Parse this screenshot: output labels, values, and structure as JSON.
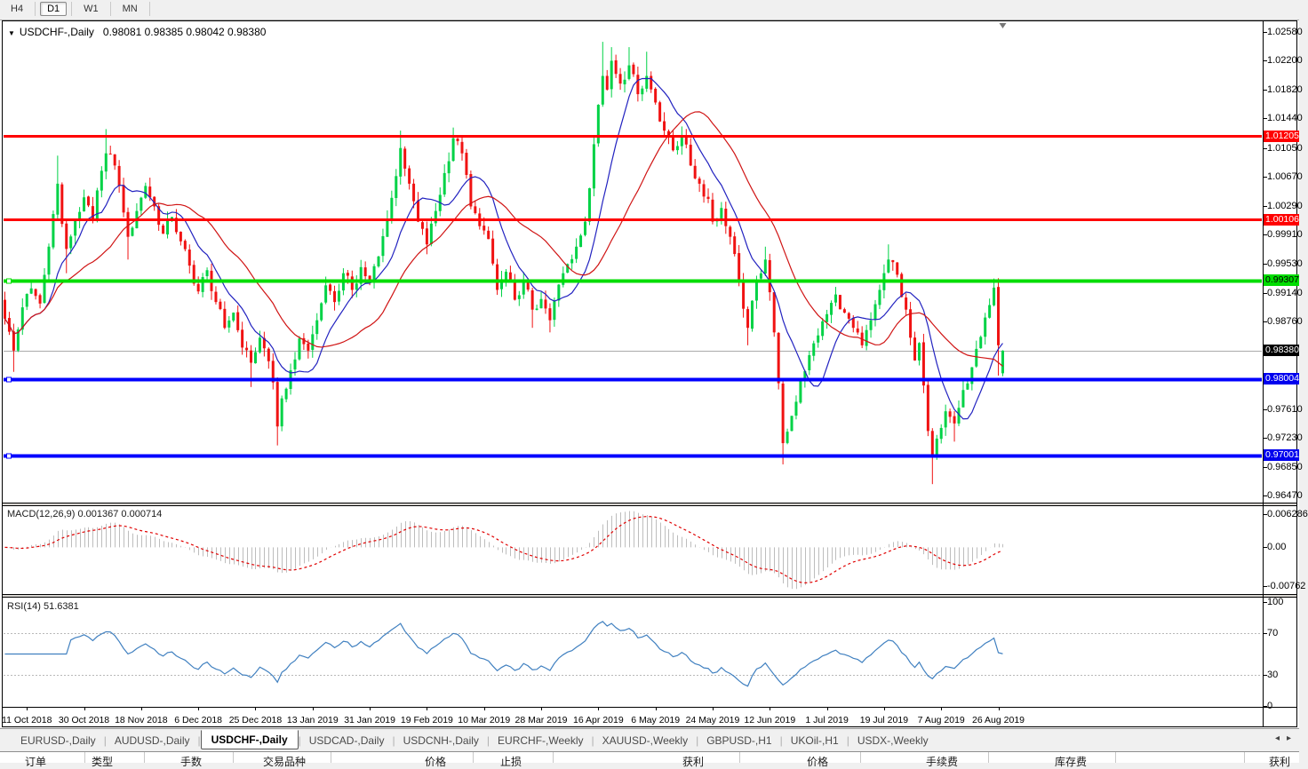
{
  "toolbar": {
    "timeframes": [
      "H4",
      "D1",
      "W1",
      "MN"
    ],
    "active": "D1"
  },
  "chart": {
    "title_symbol": "USDCHF-,Daily",
    "ohlc": "0.98081 0.98385 0.98042 0.98380"
  },
  "chart_data": {
    "type": "candlestick",
    "symbol": "USDCHF",
    "timeframe": "Daily",
    "last_ohlc": {
      "open": 0.98081,
      "high": 0.98385,
      "low": 0.98042,
      "close": 0.9838
    },
    "y_axis": {
      "min": 0.9647,
      "max": 1.0258,
      "tick_labels": [
        "1.02580",
        "1.02200",
        "1.01820",
        "1.01440",
        "1.01050",
        "1.00670",
        "1.00290",
        "0.99910",
        "0.99530",
        "0.99140",
        "0.98760",
        "0.97610",
        "0.97230",
        "0.96850",
        "0.96470"
      ],
      "tick_values": [
        1.0258,
        1.022,
        1.0182,
        1.0144,
        1.0105,
        1.0067,
        1.0029,
        0.9991,
        0.9953,
        0.9914,
        0.9876,
        0.9761,
        0.9723,
        0.9685,
        0.9647
      ]
    },
    "x_ticks": {
      "indices": [
        5,
        18,
        31,
        44,
        57,
        70,
        83,
        96,
        109,
        122,
        135,
        148,
        161,
        174,
        187,
        200,
        213,
        226
      ],
      "labels": [
        "11 Oct 2018",
        "30 Oct 2018",
        "18 Nov 2018",
        "6 Dec 2018",
        "25 Dec 2018",
        "13 Jan 2019",
        "31 Jan 2019",
        "19 Feb 2019",
        "10 Mar 2019",
        "28 Mar 2019",
        "16 Apr 2019",
        "6 May 2019",
        "24 May 2019",
        "12 Jun 2019",
        "1 Jul 2019",
        "19 Jul 2019",
        "7 Aug 2019",
        "26 Aug 2019"
      ]
    },
    "candle_count": 228,
    "first_open": 0.9905,
    "last_open": 0.98081,
    "price_path_anchors": [
      [
        0,
        0.988,
        null,
        null
      ],
      [
        2,
        0.9838,
        null,
        0.981
      ],
      [
        4,
        0.9895,
        null,
        null
      ],
      [
        6,
        0.992,
        null,
        null
      ],
      [
        8,
        0.99,
        null,
        null
      ],
      [
        10,
        0.9975,
        null,
        null
      ],
      [
        12,
        1.0058,
        1.0095,
        null
      ],
      [
        13,
        1.0005,
        null,
        null
      ],
      [
        14,
        0.9972,
        null,
        0.994
      ],
      [
        16,
        1.001,
        null,
        null
      ],
      [
        18,
        1.004,
        null,
        null
      ],
      [
        20,
        1.0012,
        null,
        null
      ],
      [
        22,
        1.0075,
        null,
        null
      ],
      [
        23,
        1.0098,
        1.013,
        null
      ],
      [
        25,
        1.0082,
        null,
        null
      ],
      [
        27,
        1.002,
        null,
        null
      ],
      [
        28,
        0.9988,
        null,
        0.9958
      ],
      [
        30,
        1.0022,
        null,
        null
      ],
      [
        32,
        1.0055,
        null,
        null
      ],
      [
        34,
        1.0028,
        null,
        null
      ],
      [
        36,
        0.9992,
        null,
        null
      ],
      [
        38,
        1.0014,
        null,
        null
      ],
      [
        40,
        0.9982,
        null,
        null
      ],
      [
        42,
        0.995,
        null,
        null
      ],
      [
        44,
        0.9916,
        null,
        null
      ],
      [
        46,
        0.9944,
        null,
        null
      ],
      [
        48,
        0.9902,
        null,
        null
      ],
      [
        50,
        0.9868,
        null,
        null
      ],
      [
        52,
        0.9888,
        null,
        null
      ],
      [
        54,
        0.9842,
        null,
        null
      ],
      [
        56,
        0.9822,
        null,
        0.979
      ],
      [
        58,
        0.9855,
        null,
        null
      ],
      [
        60,
        0.9824,
        null,
        null
      ],
      [
        61,
        0.9796,
        null,
        null
      ],
      [
        62,
        0.9738,
        null,
        0.9713
      ],
      [
        63,
        0.9775,
        null,
        null
      ],
      [
        65,
        0.9812,
        null,
        null
      ],
      [
        67,
        0.9854,
        null,
        null
      ],
      [
        69,
        0.9838,
        null,
        null
      ],
      [
        71,
        0.9878,
        null,
        null
      ],
      [
        73,
        0.9924,
        null,
        null
      ],
      [
        75,
        0.9902,
        null,
        null
      ],
      [
        77,
        0.994,
        null,
        null
      ],
      [
        79,
        0.9918,
        null,
        null
      ],
      [
        81,
        0.9948,
        null,
        null
      ],
      [
        83,
        0.9928,
        null,
        null
      ],
      [
        85,
        0.9962,
        null,
        null
      ],
      [
        87,
        1.0012,
        null,
        null
      ],
      [
        89,
        1.0068,
        null,
        null
      ],
      [
        90,
        1.0105,
        1.0128,
        null
      ],
      [
        92,
        1.0058,
        null,
        null
      ],
      [
        94,
        1.0008,
        null,
        null
      ],
      [
        96,
        0.9978,
        null,
        0.9965
      ],
      [
        98,
        1.0022,
        null,
        null
      ],
      [
        100,
        1.0072,
        null,
        null
      ],
      [
        102,
        1.0118,
        1.0132,
        null
      ],
      [
        104,
        1.0098,
        null,
        null
      ],
      [
        106,
        1.0028,
        null,
        null
      ],
      [
        108,
        1.0002,
        null,
        null
      ],
      [
        110,
        0.9985,
        null,
        null
      ],
      [
        112,
        0.9918,
        null,
        null
      ],
      [
        114,
        0.9942,
        null,
        null
      ],
      [
        116,
        0.9905,
        null,
        null
      ],
      [
        118,
        0.9932,
        null,
        null
      ],
      [
        120,
        0.9892,
        null,
        0.9868
      ],
      [
        122,
        0.9906,
        null,
        null
      ],
      [
        124,
        0.9878,
        null,
        0.9862
      ],
      [
        126,
        0.9925,
        null,
        null
      ],
      [
        128,
        0.9952,
        null,
        null
      ],
      [
        130,
        0.9975,
        null,
        null
      ],
      [
        132,
        1.0008,
        null,
        null
      ],
      [
        133,
        1.0052,
        null,
        null
      ],
      [
        134,
        1.011,
        null,
        null
      ],
      [
        135,
        1.0162,
        null,
        null
      ],
      [
        136,
        1.02,
        1.0245,
        null
      ],
      [
        137,
        1.0182,
        null,
        null
      ],
      [
        138,
        1.022,
        1.0238,
        null
      ],
      [
        140,
        1.019,
        null,
        null
      ],
      [
        142,
        1.0214,
        1.0238,
        null
      ],
      [
        144,
        1.0176,
        null,
        null
      ],
      [
        146,
        1.02,
        1.0232,
        null
      ],
      [
        148,
        1.0165,
        null,
        null
      ],
      [
        150,
        1.0128,
        null,
        null
      ],
      [
        152,
        1.0102,
        null,
        null
      ],
      [
        154,
        1.0122,
        null,
        null
      ],
      [
        156,
        1.0082,
        null,
        null
      ],
      [
        158,
        1.0058,
        null,
        null
      ],
      [
        160,
        1.0038,
        null,
        null
      ],
      [
        161,
        1.0008,
        null,
        null
      ],
      [
        163,
        1.0026,
        null,
        null
      ],
      [
        165,
        0.9988,
        null,
        null
      ],
      [
        167,
        0.993,
        null,
        null
      ],
      [
        169,
        0.9868,
        null,
        0.9845
      ],
      [
        171,
        0.9932,
        null,
        null
      ],
      [
        173,
        0.9958,
        0.9975,
        null
      ],
      [
        175,
        0.9862,
        null,
        null
      ],
      [
        176,
        0.9795,
        null,
        null
      ],
      [
        177,
        0.9716,
        null,
        0.9688
      ],
      [
        179,
        0.9752,
        null,
        null
      ],
      [
        181,
        0.9798,
        null,
        null
      ],
      [
        183,
        0.9832,
        null,
        null
      ],
      [
        185,
        0.9858,
        null,
        null
      ],
      [
        187,
        0.9886,
        null,
        null
      ],
      [
        189,
        0.9912,
        0.9922,
        null
      ],
      [
        191,
        0.9888,
        null,
        null
      ],
      [
        193,
        0.9868,
        null,
        null
      ],
      [
        195,
        0.9845,
        null,
        null
      ],
      [
        197,
        0.9878,
        null,
        null
      ],
      [
        199,
        0.9918,
        null,
        null
      ],
      [
        201,
        0.9958,
        0.9978,
        null
      ],
      [
        203,
        0.9938,
        null,
        null
      ],
      [
        205,
        0.9892,
        null,
        null
      ],
      [
        206,
        0.9855,
        null,
        null
      ],
      [
        207,
        0.9825,
        null,
        null
      ],
      [
        208,
        0.9848,
        null,
        null
      ],
      [
        209,
        0.9792,
        null,
        null
      ],
      [
        210,
        0.9732,
        null,
        null
      ],
      [
        211,
        0.9698,
        null,
        0.9662
      ],
      [
        212,
        0.9722,
        null,
        null
      ],
      [
        214,
        0.9758,
        null,
        null
      ],
      [
        216,
        0.9742,
        null,
        0.9718
      ],
      [
        218,
        0.9786,
        null,
        null
      ],
      [
        220,
        0.9816,
        null,
        null
      ],
      [
        222,
        0.9856,
        null,
        null
      ],
      [
        224,
        0.9898,
        null,
        null
      ],
      [
        225,
        0.9921,
        0.9933,
        null
      ],
      [
        226,
        0.9845,
        null,
        0.9805
      ],
      [
        227,
        0.9838,
        0.98385,
        0.98042
      ]
    ],
    "h_lines": [
      {
        "price": 1.01205,
        "text": "1.01205",
        "line_color": "#FF0000",
        "width": 3,
        "bg": "#FF0000",
        "fg": "#FFFFFF",
        "handle": false
      },
      {
        "price": 1.00106,
        "text": "1.00106",
        "line_color": "#FF0000",
        "width": 3,
        "bg": "#FF0000",
        "fg": "#FFFFFF",
        "handle": false
      },
      {
        "price": 0.99307,
        "text": "0.99307",
        "line_color": "#00DD00",
        "width": 4,
        "bg": "#00DD00",
        "fg": "#000000",
        "handle": true
      },
      {
        "price": 0.98004,
        "text": "0.98004",
        "line_color": "#0000FF",
        "width": 4,
        "bg": "#0000EE",
        "fg": "#FFFFFF",
        "handle": true
      },
      {
        "price": 0.97001,
        "text": "0.97001",
        "line_color": "#0000FF",
        "width": 4,
        "bg": "#0000EE",
        "fg": "#FFFFFF",
        "handle": true
      }
    ],
    "current_price": {
      "value": 0.9838,
      "text": "0.98380",
      "bg": "#000000",
      "fg": "#FFFFFF",
      "line_color": "#AAAAAA"
    },
    "moving_averages": [
      {
        "period": 10,
        "color": "#2222C0"
      },
      {
        "period": 25,
        "color": "#D01414"
      }
    ],
    "indicators": {
      "macd": {
        "label": "MACD(12,26,9)",
        "values_text": "0.001367 0.000714",
        "params": [
          12,
          26,
          9
        ],
        "axis_labels": [
          "0.006286",
          "0.00",
          "-0.00762"
        ],
        "hist_color": "#BDBDBD",
        "signal_color": "#E00000"
      },
      "rsi": {
        "label": "RSI(14)",
        "value_text": "51.6381",
        "period": 14,
        "levels": [
          70,
          30
        ],
        "axis_labels": [
          "100",
          "70",
          "30",
          "0"
        ],
        "axis_values": [
          100,
          70,
          30,
          0
        ],
        "color": "#4080C0"
      }
    },
    "candle_up_color": "#00D246",
    "candle_down_color": "#F01212"
  },
  "tabs": {
    "items": [
      "EURUSD-,Daily",
      "AUDUSD-,Daily",
      "USDCHF-,Daily",
      "USDCAD-,Daily",
      "USDCNH-,Daily",
      "EURCHF-,Weekly",
      "XAUUSD-,Weekly",
      "GBPUSD-,H1",
      "UKOil-,H1",
      "USDX-,Weekly"
    ],
    "active_index": 2,
    "scroll_left": "◂",
    "scroll_right": "▸"
  },
  "terminal": {
    "columns": [
      "订单",
      "类型",
      "手数",
      "交易品种",
      "价格",
      "止损",
      "获利",
      "价格",
      "手续费",
      "库存费",
      "获利"
    ]
  }
}
